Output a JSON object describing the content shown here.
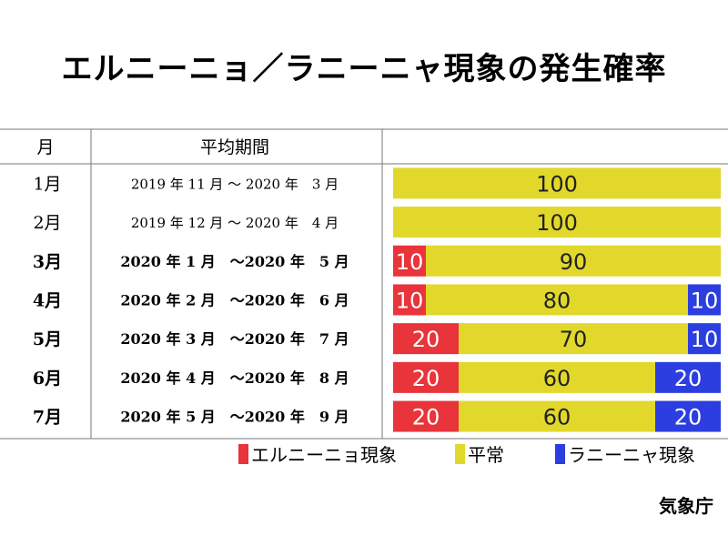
{
  "title": "エルニーニョ／ラニーニャ現象の発生確率",
  "source": "気象庁",
  "chart_data": {
    "type": "bar",
    "stacked": true,
    "orientation": "horizontal",
    "column_headers": {
      "month": "月",
      "period": "平均期間"
    },
    "categories": [
      "1月",
      "2月",
      "3月",
      "4月",
      "5月",
      "6月",
      "7月"
    ],
    "periods": [
      "2019 年 11 月 〜 2020 年　3 月",
      "2019 年 12 月 〜 2020 年　4 月",
      "2020 年 1 月　〜2020 年　5 月",
      "2020 年 2 月　〜2020 年　6 月",
      "2020 年 3 月　〜2020 年　7 月",
      "2020 年 4 月　〜2020 年　8 月",
      "2020 年 5 月　〜2020 年　9 月"
    ],
    "bold_rows": [
      false,
      false,
      true,
      true,
      true,
      true,
      true
    ],
    "series": [
      {
        "name": "エルニーニョ現象",
        "color": "#e8343a",
        "values": [
          0,
          0,
          10,
          10,
          20,
          20,
          20
        ]
      },
      {
        "name": "平常",
        "color": "#e2d82c",
        "values": [
          100,
          100,
          90,
          80,
          70,
          60,
          60
        ]
      },
      {
        "name": "ラニーニャ現象",
        "color": "#2c3ee0",
        "values": [
          0,
          0,
          0,
          10,
          10,
          20,
          20
        ]
      }
    ],
    "xlim": [
      0,
      100
    ],
    "legend_position": "bottom"
  }
}
